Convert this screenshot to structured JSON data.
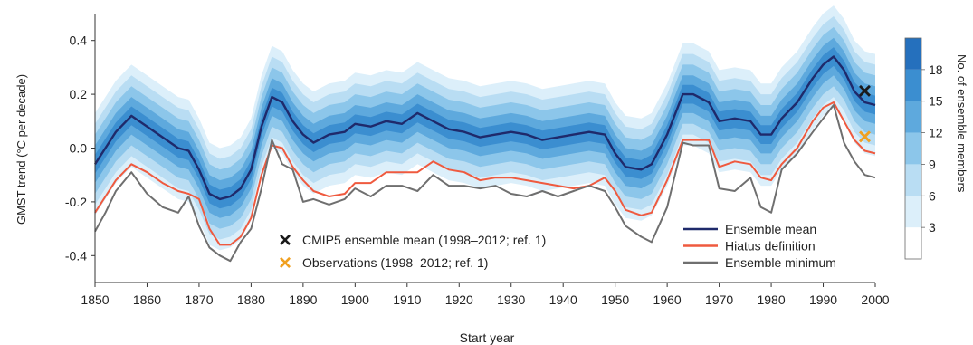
{
  "chart_data": {
    "type": "area",
    "xlabel": "Start year",
    "ylabel": "GMST trend (°C per decade)",
    "xlim": [
      1850,
      2000
    ],
    "ylim": [
      -0.5,
      0.5
    ],
    "x_ticks": [
      1850,
      1860,
      1870,
      1880,
      1890,
      1900,
      1910,
      1920,
      1930,
      1940,
      1950,
      1960,
      1970,
      1980,
      1990,
      2000
    ],
    "y_ticks": [
      -0.4,
      -0.2,
      0.0,
      0.2,
      0.4
    ],
    "y_tick_labels": [
      "-0.4",
      "-0.2",
      "0.0",
      "0.2",
      "0.4"
    ],
    "colorbar": {
      "label": "No. of ensemble members",
      "ticks": [
        "3",
        "6",
        "9",
        "12",
        "15",
        "18"
      ],
      "colors": [
        "#ffffff",
        "#dceffa",
        "#b9ddf3",
        "#8cc6ea",
        "#5ea9dd",
        "#3b8ed0",
        "#2570bd"
      ]
    },
    "shading_envelopes": [
      {
        "level": 1,
        "color": "#dceffa",
        "upper_offset": 0.19,
        "lower_offset": -0.19
      },
      {
        "level": 2,
        "color": "#b9ddf3",
        "upper_offset": 0.15,
        "lower_offset": -0.15
      },
      {
        "level": 3,
        "color": "#8cc6ea",
        "upper_offset": 0.11,
        "lower_offset": -0.11
      },
      {
        "level": 4,
        "color": "#5ea9dd",
        "upper_offset": 0.07,
        "lower_offset": -0.07
      },
      {
        "level": 5,
        "color": "#3b8ed0",
        "upper_offset": 0.035,
        "lower_offset": -0.035
      }
    ],
    "x": [
      1850,
      1852,
      1854,
      1857,
      1860,
      1863,
      1866,
      1868,
      1870,
      1872,
      1874,
      1876,
      1878,
      1880,
      1882,
      1884,
      1886,
      1888,
      1890,
      1892,
      1895,
      1898,
      1900,
      1903,
      1906,
      1909,
      1912,
      1915,
      1918,
      1921,
      1924,
      1927,
      1930,
      1933,
      1936,
      1939,
      1942,
      1945,
      1948,
      1950,
      1952,
      1955,
      1957,
      1960,
      1963,
      1965,
      1968,
      1970,
      1973,
      1976,
      1978,
      1980,
      1982,
      1985,
      1988,
      1990,
      1992,
      1994,
      1996,
      1998,
      2000
    ],
    "series": [
      {
        "name": "Ensemble mean",
        "color": "#1f2a6b",
        "values": [
          -0.06,
          0.0,
          0.06,
          0.12,
          0.08,
          0.04,
          0.0,
          -0.01,
          -0.08,
          -0.17,
          -0.19,
          -0.18,
          -0.15,
          -0.08,
          0.08,
          0.19,
          0.17,
          0.1,
          0.05,
          0.02,
          0.05,
          0.06,
          0.09,
          0.08,
          0.1,
          0.09,
          0.13,
          0.1,
          0.07,
          0.06,
          0.04,
          0.05,
          0.06,
          0.05,
          0.03,
          0.04,
          0.05,
          0.06,
          0.05,
          -0.02,
          -0.07,
          -0.08,
          -0.06,
          0.05,
          0.2,
          0.2,
          0.17,
          0.1,
          0.11,
          0.1,
          0.05,
          0.05,
          0.11,
          0.17,
          0.26,
          0.31,
          0.34,
          0.29,
          0.21,
          0.17,
          0.16
        ]
      },
      {
        "name": "Hiatus definition",
        "color": "#ef5a3f",
        "values": [
          -0.24,
          -0.18,
          -0.12,
          -0.06,
          -0.09,
          -0.13,
          -0.16,
          -0.17,
          -0.19,
          -0.3,
          -0.36,
          -0.36,
          -0.33,
          -0.26,
          -0.1,
          0.01,
          0.0,
          -0.07,
          -0.12,
          -0.16,
          -0.18,
          -0.17,
          -0.13,
          -0.13,
          -0.09,
          -0.09,
          -0.09,
          -0.05,
          -0.08,
          -0.09,
          -0.12,
          -0.11,
          -0.11,
          -0.12,
          -0.13,
          -0.14,
          -0.15,
          -0.14,
          -0.11,
          -0.16,
          -0.23,
          -0.25,
          -0.24,
          -0.12,
          0.03,
          0.03,
          0.03,
          -0.07,
          -0.05,
          -0.06,
          -0.11,
          -0.12,
          -0.06,
          0.0,
          0.1,
          0.15,
          0.17,
          0.1,
          0.03,
          -0.01,
          -0.02
        ]
      },
      {
        "name": "Ensemble minimum",
        "color": "#6f6f6f",
        "values": [
          -0.31,
          -0.24,
          -0.16,
          -0.09,
          -0.17,
          -0.22,
          -0.24,
          -0.18,
          -0.29,
          -0.37,
          -0.4,
          -0.42,
          -0.35,
          -0.3,
          -0.15,
          0.03,
          -0.06,
          -0.08,
          -0.2,
          -0.19,
          -0.21,
          -0.19,
          -0.15,
          -0.18,
          -0.14,
          -0.14,
          -0.16,
          -0.1,
          -0.14,
          -0.14,
          -0.15,
          -0.14,
          -0.17,
          -0.18,
          -0.16,
          -0.18,
          -0.16,
          -0.14,
          -0.16,
          -0.22,
          -0.29,
          -0.33,
          -0.35,
          -0.22,
          0.02,
          0.01,
          0.01,
          -0.15,
          -0.16,
          -0.11,
          -0.22,
          -0.24,
          -0.08,
          -0.02,
          0.06,
          0.11,
          0.16,
          0.02,
          -0.05,
          -0.1,
          -0.11
        ]
      }
    ],
    "markers": [
      {
        "label": "CMIP5 ensemble mean (1998–2012; ref. 1)",
        "symbol": "×",
        "color": "#1a1a1a",
        "x": 1998,
        "y": 0.21
      },
      {
        "label": "Observations (1998–2012; ref. 1)",
        "symbol": "×",
        "color": "#f0a020",
        "x": 1998,
        "y": 0.04
      }
    ],
    "legend_left": {
      "placement": "bottom-center",
      "entries": [
        "CMIP5 ensemble mean (1998–2012; ref. 1)",
        "Observations (1998–2012; ref. 1)"
      ]
    },
    "legend_right": {
      "placement": "bottom-right",
      "entries": [
        "Ensemble mean",
        "Hiatus definition",
        "Ensemble minimum"
      ]
    },
    "grid": false
  }
}
